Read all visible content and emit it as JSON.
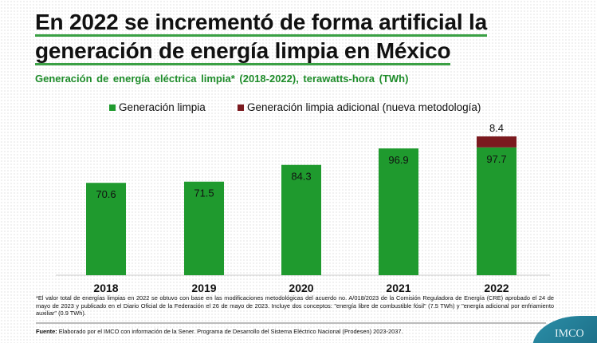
{
  "title_line1": "En 2022 se incrementó de forma artificial la",
  "title_line2": "generación de energía limpia en México",
  "subtitle": "Generación de energía eléctrica limpia* (2018-2022), terawatts-hora (TWh)",
  "note": "*El valor total de energías limpias en 2022 se obtuvo con base en las modificaciones metodológicas del acuerdo no. A/018/2023 de la Comisión Reguladora de Energía (CRE) aprobado el 24 de mayo de 2023 y publicado en el Diario Oficial de la Federación el 26 de mayo de 2023. Incluye dos conceptos: \"energía libre de combustible fósil\" (7.5 TWh) y \"energía adicional por enfriamiento auxiliar\" (0.9 TWh).",
  "source_label": "Fuente:",
  "source_text": " Elaborado por el IMCO con información de la Sener. Programa de Desarrollo del Sistema Eléctrico Nacional (Prodesen) 2023-2037.",
  "logo_text": "IMCO",
  "chart_data": {
    "type": "bar",
    "stacked": true,
    "categories": [
      "2018",
      "2019",
      "2020",
      "2021",
      "2022"
    ],
    "series": [
      {
        "name": "Generación limpia",
        "values": [
          70.6,
          71.5,
          84.3,
          96.9,
          97.7
        ],
        "color": "#1f9a2e"
      },
      {
        "name": "Generación limpia adicional (nueva metodología)",
        "values": [
          0,
          0,
          0,
          0,
          8.4
        ],
        "color": "#7b1a1f"
      }
    ],
    "data_labels": [
      [
        "70.6",
        "71.5",
        "84.3",
        "96.9",
        "97.7"
      ],
      [
        "",
        "",
        "",
        "",
        "8.4"
      ]
    ],
    "legend_position": "top",
    "grid": false
  }
}
